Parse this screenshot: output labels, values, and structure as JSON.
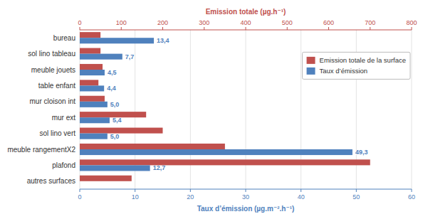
{
  "chart_data": {
    "type": "bar",
    "orientation": "horizontal",
    "categories": [
      "autres surfaces",
      "plafond",
      "meuble rangementX2",
      "sol lino vert",
      "mur ext",
      "mur cloison int",
      "table enfant",
      "meuble jouets",
      "sol lino  tableau",
      "bureau"
    ],
    "series": [
      {
        "name": "Emission totale de la surface",
        "color": "#C0504D",
        "axis": "y2",
        "values": [
          125,
          700,
          350,
          200,
          160,
          60,
          45,
          55,
          50,
          50
        ]
      },
      {
        "name": "Taux d’émission",
        "color": "#4F81BD",
        "data_labels": true,
        "values": [
          0,
          12.7,
          49.3,
          5.0,
          5.4,
          5.0,
          4.4,
          4.5,
          7.7,
          13.4
        ],
        "value_labels": [
          null,
          "12,7",
          "49,3",
          "5,0",
          "5,4",
          "5,0",
          "4,4",
          "4,5",
          "7,7",
          "13,4"
        ]
      }
    ],
    "ylabel": "Taux d’émission (µg.m⁻².h⁻¹)",
    "y2label": "Emission totale (µg.h⁻¹)",
    "ylim": [
      0,
      60
    ],
    "yticks": [
      0,
      10,
      20,
      30,
      40,
      50,
      60
    ],
    "y2lim": [
      0,
      800
    ],
    "y2ticks": [
      0,
      100,
      200,
      300,
      400,
      500,
      600,
      700,
      800
    ],
    "grid": true,
    "legend": "right"
  }
}
